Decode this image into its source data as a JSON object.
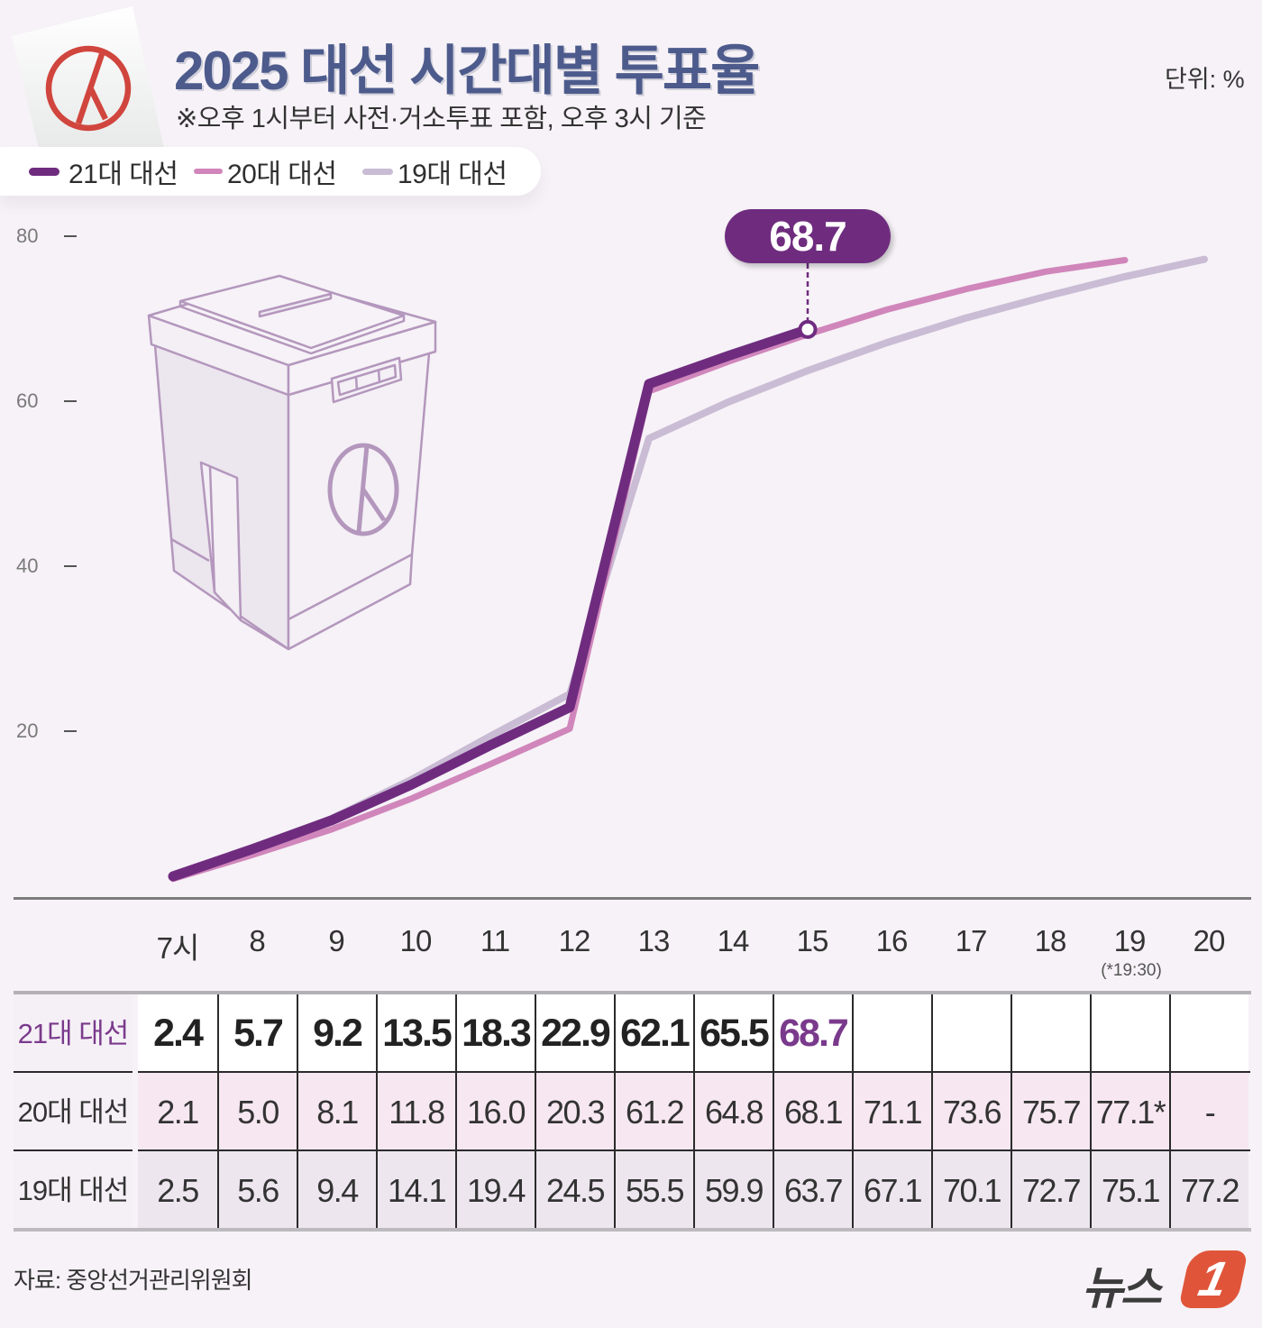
{
  "header": {
    "title": "2025 대선 시간대별 투표율",
    "subtitle": "※오후 1시부터 사전·거소투표 포함, 오후 3시 기준",
    "unit": "단위: %"
  },
  "legend": [
    {
      "label": "21대 대선",
      "color": "#6f2c7f"
    },
    {
      "label": "20대 대선",
      "color": "#d086bb"
    },
    {
      "label": "19대 대선",
      "color": "#c9bcd4"
    }
  ],
  "y_axis": {
    "ticks": [
      "80",
      "60",
      "40",
      "20"
    ]
  },
  "callout": {
    "value": "68.7",
    "color": "#6f2c7f"
  },
  "table": {
    "hours": [
      "7시",
      "8",
      "9",
      "10",
      "11",
      "12",
      "13",
      "14",
      "15",
      "16",
      "17",
      "18",
      "19",
      "20"
    ],
    "hour_note": "(*19:30)",
    "rows": [
      {
        "label": "21대 대선",
        "values": [
          "2.4",
          "5.7",
          "9.2",
          "13.5",
          "18.3",
          "22.9",
          "62.1",
          "65.5",
          "68.7",
          "",
          "",
          "",
          "",
          ""
        ]
      },
      {
        "label": "20대 대선",
        "values": [
          "2.1",
          "5.0",
          "8.1",
          "11.8",
          "16.0",
          "20.3",
          "61.2",
          "64.8",
          "68.1",
          "71.1",
          "73.6",
          "75.7",
          "77.1*",
          "-"
        ]
      },
      {
        "label": "19대 대선",
        "values": [
          "2.5",
          "5.6",
          "9.4",
          "14.1",
          "19.4",
          "24.5",
          "55.5",
          "59.9",
          "63.7",
          "67.1",
          "70.1",
          "72.7",
          "75.1",
          "77.2"
        ]
      }
    ]
  },
  "footer": {
    "source": "자료: 중앙선거관리위원회",
    "logo_text": "뉴스",
    "logo_number": "1"
  },
  "chart_data": {
    "type": "line",
    "title": "2025 대선 시간대별 투표율",
    "subtitle": "※오후 1시부터 사전·거소투표 포함, 오후 3시 기준",
    "xlabel": "",
    "ylabel": "단위: %",
    "x": [
      "7시",
      "8",
      "9",
      "10",
      "11",
      "12",
      "13",
      "14",
      "15",
      "16",
      "17",
      "18",
      "19",
      "20"
    ],
    "ylim": [
      0,
      80
    ],
    "yticks": [
      20,
      40,
      60,
      80
    ],
    "grid": false,
    "legend_position": "top-left",
    "annotations": [
      {
        "x": "15",
        "y": 68.7,
        "text": "68.7"
      },
      {
        "x": "19",
        "text": "(*19:30)"
      }
    ],
    "series": [
      {
        "name": "21대 대선",
        "color": "#6f2c7f",
        "values": [
          2.4,
          5.7,
          9.2,
          13.5,
          18.3,
          22.9,
          62.1,
          65.5,
          68.7,
          null,
          null,
          null,
          null,
          null
        ]
      },
      {
        "name": "20대 대선",
        "color": "#d086bb",
        "values": [
          2.1,
          5.0,
          8.1,
          11.8,
          16.0,
          20.3,
          61.2,
          64.8,
          68.1,
          71.1,
          73.6,
          75.7,
          77.1,
          null
        ]
      },
      {
        "name": "19대 대선",
        "color": "#c9bcd4",
        "values": [
          2.5,
          5.6,
          9.4,
          14.1,
          19.4,
          24.5,
          55.5,
          59.9,
          63.7,
          67.1,
          70.1,
          72.7,
          75.1,
          77.2
        ]
      }
    ]
  }
}
